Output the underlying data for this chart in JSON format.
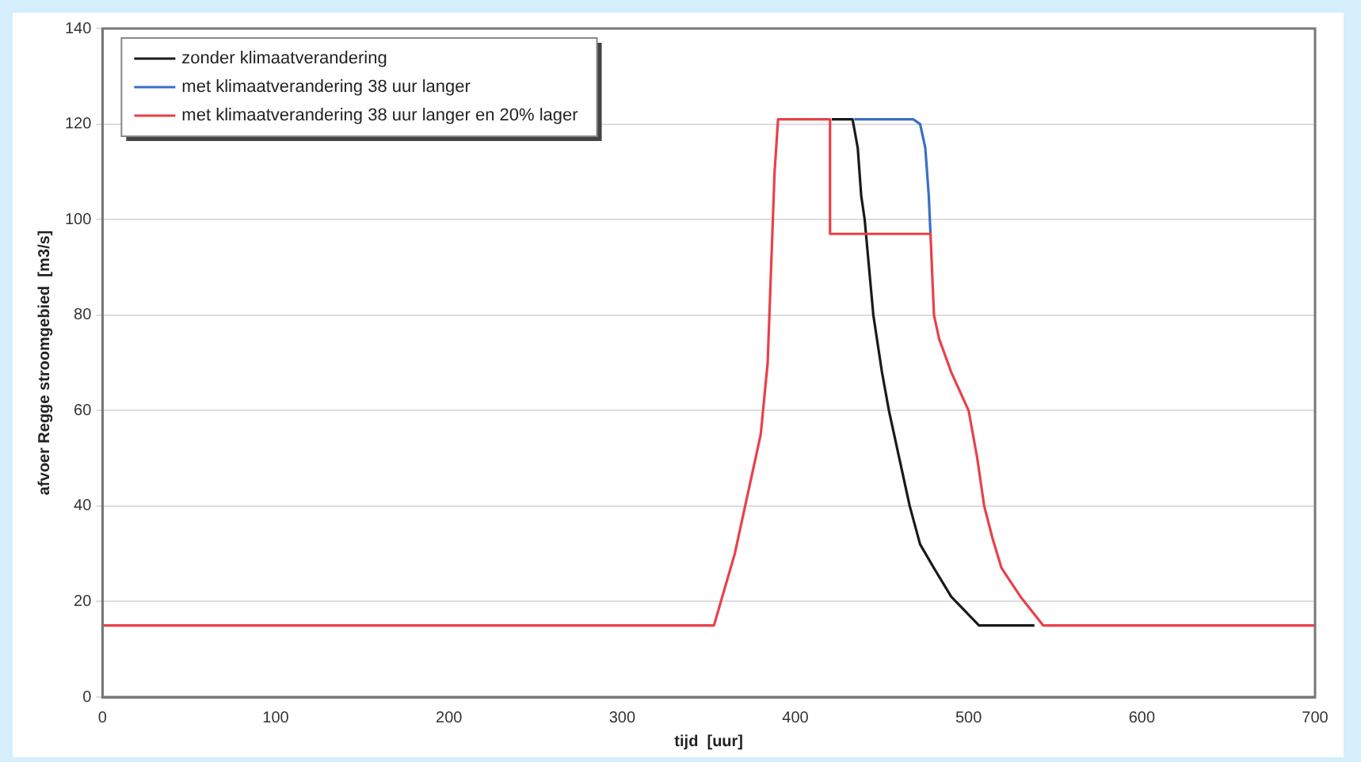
{
  "chart_data": {
    "type": "line",
    "xlabel": "tijd  [uur]",
    "ylabel": "afvoer Regge stroomgebied  [m3/s]",
    "xlim": [
      0,
      700
    ],
    "xticks": [
      0,
      100,
      200,
      300,
      400,
      500,
      600,
      700
    ],
    "ylim": [
      0,
      140
    ],
    "yticks": [
      0,
      20,
      40,
      60,
      80,
      100,
      120,
      140
    ],
    "grid": "y",
    "legend": "top left",
    "marker": "none",
    "line_style": "solid",
    "series": [
      {
        "name": "zonder klimaatverandering",
        "color": "#1a1a1a",
        "x": [
          421,
          433,
          436,
          438,
          440,
          445,
          450,
          454,
          460,
          466,
          472,
          480,
          490,
          506,
          538
        ],
        "values": [
          121,
          121,
          115,
          105,
          100,
          80,
          68,
          60,
          50,
          40,
          32,
          27,
          21,
          15,
          15
        ]
      },
      {
        "name": "met klimaatverandering 38 uur langer",
        "color": "#3a6fc4",
        "x": [
          434,
          468,
          472,
          475,
          477,
          478
        ],
        "values": [
          121,
          121,
          120,
          115,
          105,
          97
        ]
      },
      {
        "name": "met klimaatverandering 38 uur langer en 20% lager",
        "color": "#e8414a",
        "x": [
          0,
          353,
          357,
          365,
          374,
          380,
          384,
          386,
          388,
          390,
          420,
          420,
          478,
          480,
          483,
          490,
          500,
          505,
          509,
          514,
          519,
          530,
          543,
          700
        ],
        "values": [
          15,
          15,
          20,
          30,
          45,
          55,
          70,
          90,
          110,
          121,
          121,
          97,
          97,
          80,
          75,
          68,
          60,
          50,
          40,
          33,
          27,
          21,
          15,
          15
        ]
      }
    ]
  }
}
